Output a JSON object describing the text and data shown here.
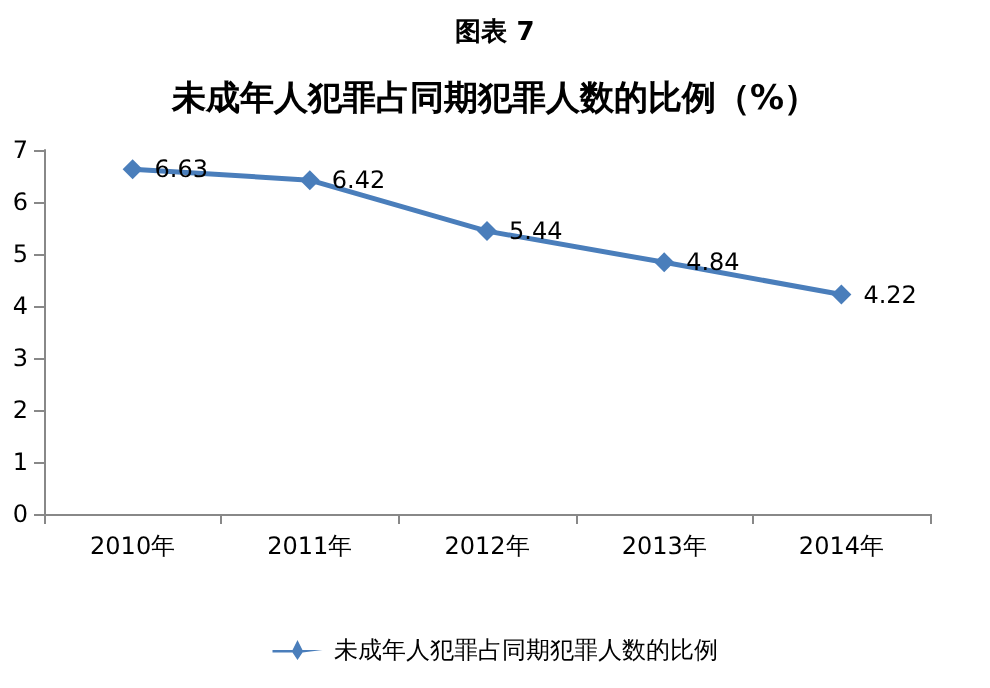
{
  "chart_data": {
    "type": "line",
    "title": "未成年人犯罪占同期犯罪人数的比例（%）",
    "annotations": [
      "图表 7"
    ],
    "categories": [
      "2010年",
      "2011年",
      "2012年",
      "2013年",
      "2014年"
    ],
    "series": [
      {
        "name": "未成年人犯罪占同期犯罪人数的比例",
        "color": "#4a7ebb",
        "values": [
          6.63,
          6.42,
          5.44,
          4.84,
          4.22
        ]
      }
    ],
    "ylim": [
      0,
      7
    ],
    "yticks": [
      0,
      1,
      2,
      3,
      4,
      5,
      6,
      7
    ],
    "grid": false,
    "legend": "bottom",
    "marker": "diamond",
    "line_style": "solid",
    "data_labels": true
  }
}
